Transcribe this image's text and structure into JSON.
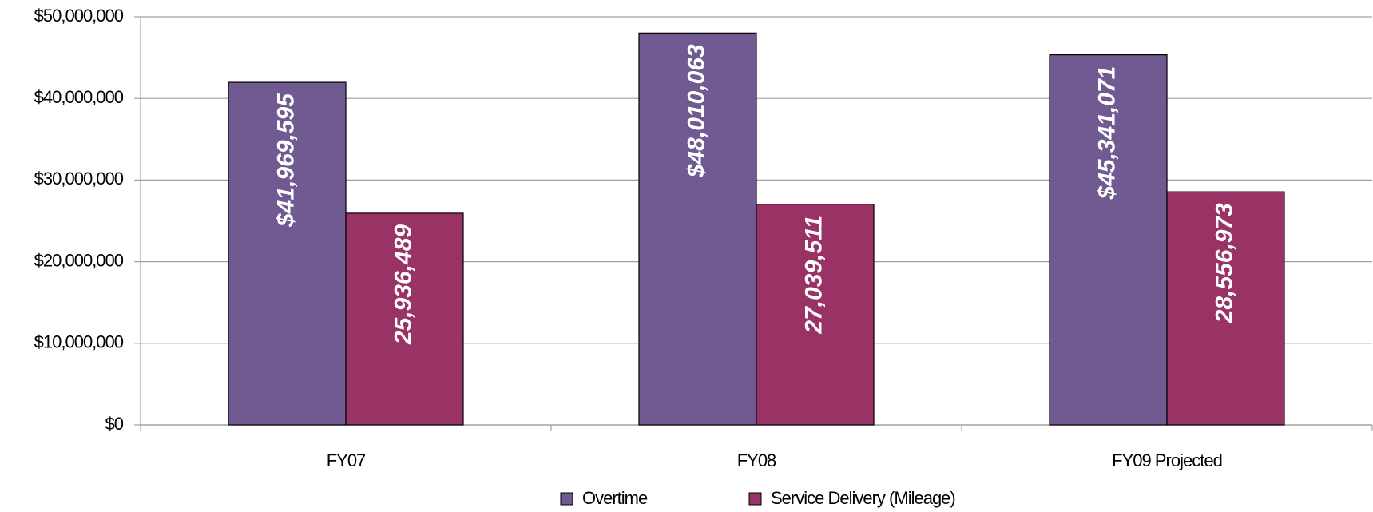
{
  "chart_data": {
    "type": "bar",
    "categories": [
      "FY07",
      "FY08",
      "FY09 Projected"
    ],
    "series": [
      {
        "name": "Overtime",
        "color": "#715a92",
        "values": [
          41969595,
          48010063,
          45341071
        ],
        "value_labels": [
          "$41,969,595",
          "$48,010,063",
          "$45,341,071"
        ]
      },
      {
        "name": "Service Delivery (Mileage)",
        "color": "#993366",
        "values": [
          25936489,
          27039511,
          28556973
        ],
        "value_labels": [
          "25,936,489",
          "27,039,511",
          "28,556,973"
        ]
      }
    ],
    "ylim": [
      0,
      50000000
    ],
    "yticks": [
      {
        "value": 0,
        "label": "$0"
      },
      {
        "value": 10000000,
        "label": "$10,000,000"
      },
      {
        "value": 20000000,
        "label": "$20,000,000"
      },
      {
        "value": 30000000,
        "label": "$30,000,000"
      },
      {
        "value": 40000000,
        "label": "$40,000,000"
      },
      {
        "value": 50000000,
        "label": "$50,000,000"
      }
    ],
    "grid": true,
    "legend": "bottom"
  }
}
